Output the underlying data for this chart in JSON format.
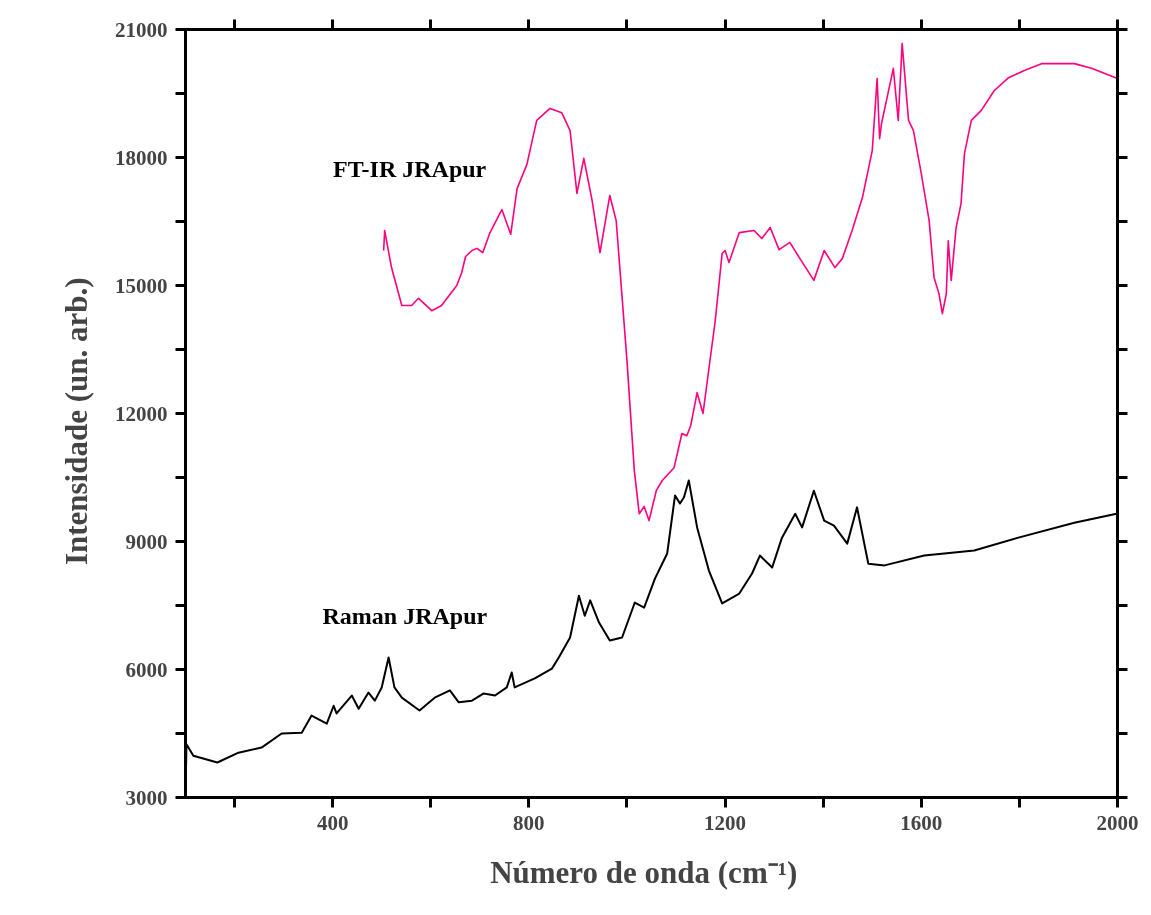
{
  "chart_data": {
    "type": "line",
    "xlabel": "Número de onda   (cm⁻¹)",
    "ylabel": "Intensidade   (un. arb.)",
    "xlim": [
      100,
      2000
    ],
    "ylim": [
      3000,
      21000
    ],
    "xticks": [
      {
        "value": 200,
        "label": null
      },
      400,
      {
        "value": 600,
        "label": null
      },
      800,
      {
        "value": 1000,
        "label": null
      },
      1200,
      {
        "value": 1400,
        "label": null
      },
      1600,
      {
        "value": 1800,
        "label": null
      },
      2000
    ],
    "yticks": [
      3000,
      {
        "value": 4500,
        "label": null
      },
      6000,
      {
        "value": 7500,
        "label": null
      },
      9000,
      {
        "value": 10500,
        "label": null
      },
      12000,
      {
        "value": 13500,
        "label": null
      },
      15000,
      {
        "value": 16500,
        "label": null
      },
      18000,
      {
        "value": 19500,
        "label": null
      },
      21000
    ],
    "grid": false,
    "marker": "none",
    "line_style": "solid",
    "series": [
      {
        "name": "FT-IR JRApur",
        "color": "#ff007f",
        "x": [
          504,
          506,
          520,
          541,
          561,
          575,
          602,
          622,
          653,
          663,
          671,
          684,
          694,
          706,
          720,
          745,
          763,
          776,
          796,
          816,
          843,
          867,
          884,
          898,
          912,
          929,
          945,
          965,
          978,
          1000,
          1015,
          1025,
          1035,
          1045,
          1060,
          1072,
          1096,
          1112,
          1122,
          1130,
          1143,
          1155,
          1180,
          1194,
          1200,
          1208,
          1229,
          1259,
          1275,
          1292,
          1310,
          1332,
          1351,
          1381,
          1402,
          1424,
          1439,
          1459,
          1480,
          1500,
          1510,
          1515,
          1519,
          1543,
          1553,
          1561,
          1574,
          1584,
          1600,
          1616,
          1626,
          1636,
          1643,
          1651,
          1655,
          1661,
          1671,
          1681,
          1688,
          1702,
          1722,
          1749,
          1778,
          1810,
          1845,
          1880,
          1912,
          1947,
          2000
        ],
        "values": [
          15820,
          16290,
          15420,
          14530,
          14530,
          14700,
          14410,
          14530,
          15000,
          15300,
          15680,
          15820,
          15870,
          15770,
          16220,
          16780,
          16200,
          17270,
          17840,
          18870,
          19150,
          19050,
          18630,
          17160,
          17980,
          16990,
          15770,
          17110,
          16520,
          13240,
          10660,
          9650,
          9820,
          9490,
          10200,
          10430,
          10730,
          11530,
          11480,
          11720,
          12490,
          12000,
          14180,
          15750,
          15820,
          15540,
          16240,
          16290,
          16100,
          16360,
          15840,
          16010,
          15660,
          15120,
          15820,
          15420,
          15630,
          16290,
          17060,
          18160,
          19850,
          18440,
          18800,
          20090,
          18870,
          20670,
          18870,
          18630,
          17620,
          16520,
          15190,
          14810,
          14340,
          14810,
          16050,
          15120,
          16360,
          16920,
          18090,
          18870,
          19100,
          19570,
          19870,
          20040,
          20200,
          20200,
          20200,
          20090,
          19850
        ]
      },
      {
        "name": "Raman JRApur",
        "color": "#000000",
        "x": [
          100,
          102,
          116,
          165,
          208,
          255,
          296,
          337,
          357,
          388,
          402,
          408,
          439,
          453,
          473,
          486,
          500,
          514,
          526,
          541,
          577,
          608,
          639,
          657,
          684,
          708,
          731,
          755,
          765,
          771,
          812,
          847,
          861,
          884,
          902,
          914,
          925,
          943,
          965,
          990,
          1016,
          1035,
          1057,
          1082,
          1098,
          1108,
          1116,
          1126,
          1143,
          1167,
          1194,
          1229,
          1255,
          1271,
          1296,
          1316,
          1343,
          1357,
          1381,
          1402,
          1422,
          1449,
          1469,
          1492,
          1525,
          1606,
          1708,
          1798,
          1912,
          1998
        ],
        "values": [
          3050,
          4250,
          3980,
          3820,
          4050,
          4170,
          4500,
          4520,
          4920,
          4730,
          5150,
          4970,
          5390,
          5080,
          5460,
          5270,
          5580,
          6280,
          5580,
          5340,
          5040,
          5340,
          5510,
          5230,
          5270,
          5440,
          5390,
          5580,
          5930,
          5580,
          5790,
          6020,
          6280,
          6750,
          7730,
          7260,
          7620,
          7100,
          6680,
          6750,
          7570,
          7450,
          8130,
          8720,
          10080,
          9890,
          10030,
          10430,
          9330,
          8320,
          7550,
          7780,
          8250,
          8670,
          8390,
          9090,
          9650,
          9330,
          10190,
          9490,
          9370,
          8950,
          9800,
          8480,
          8440,
          8670,
          8790,
          9090,
          9440,
          9650
        ]
      }
    ]
  }
}
